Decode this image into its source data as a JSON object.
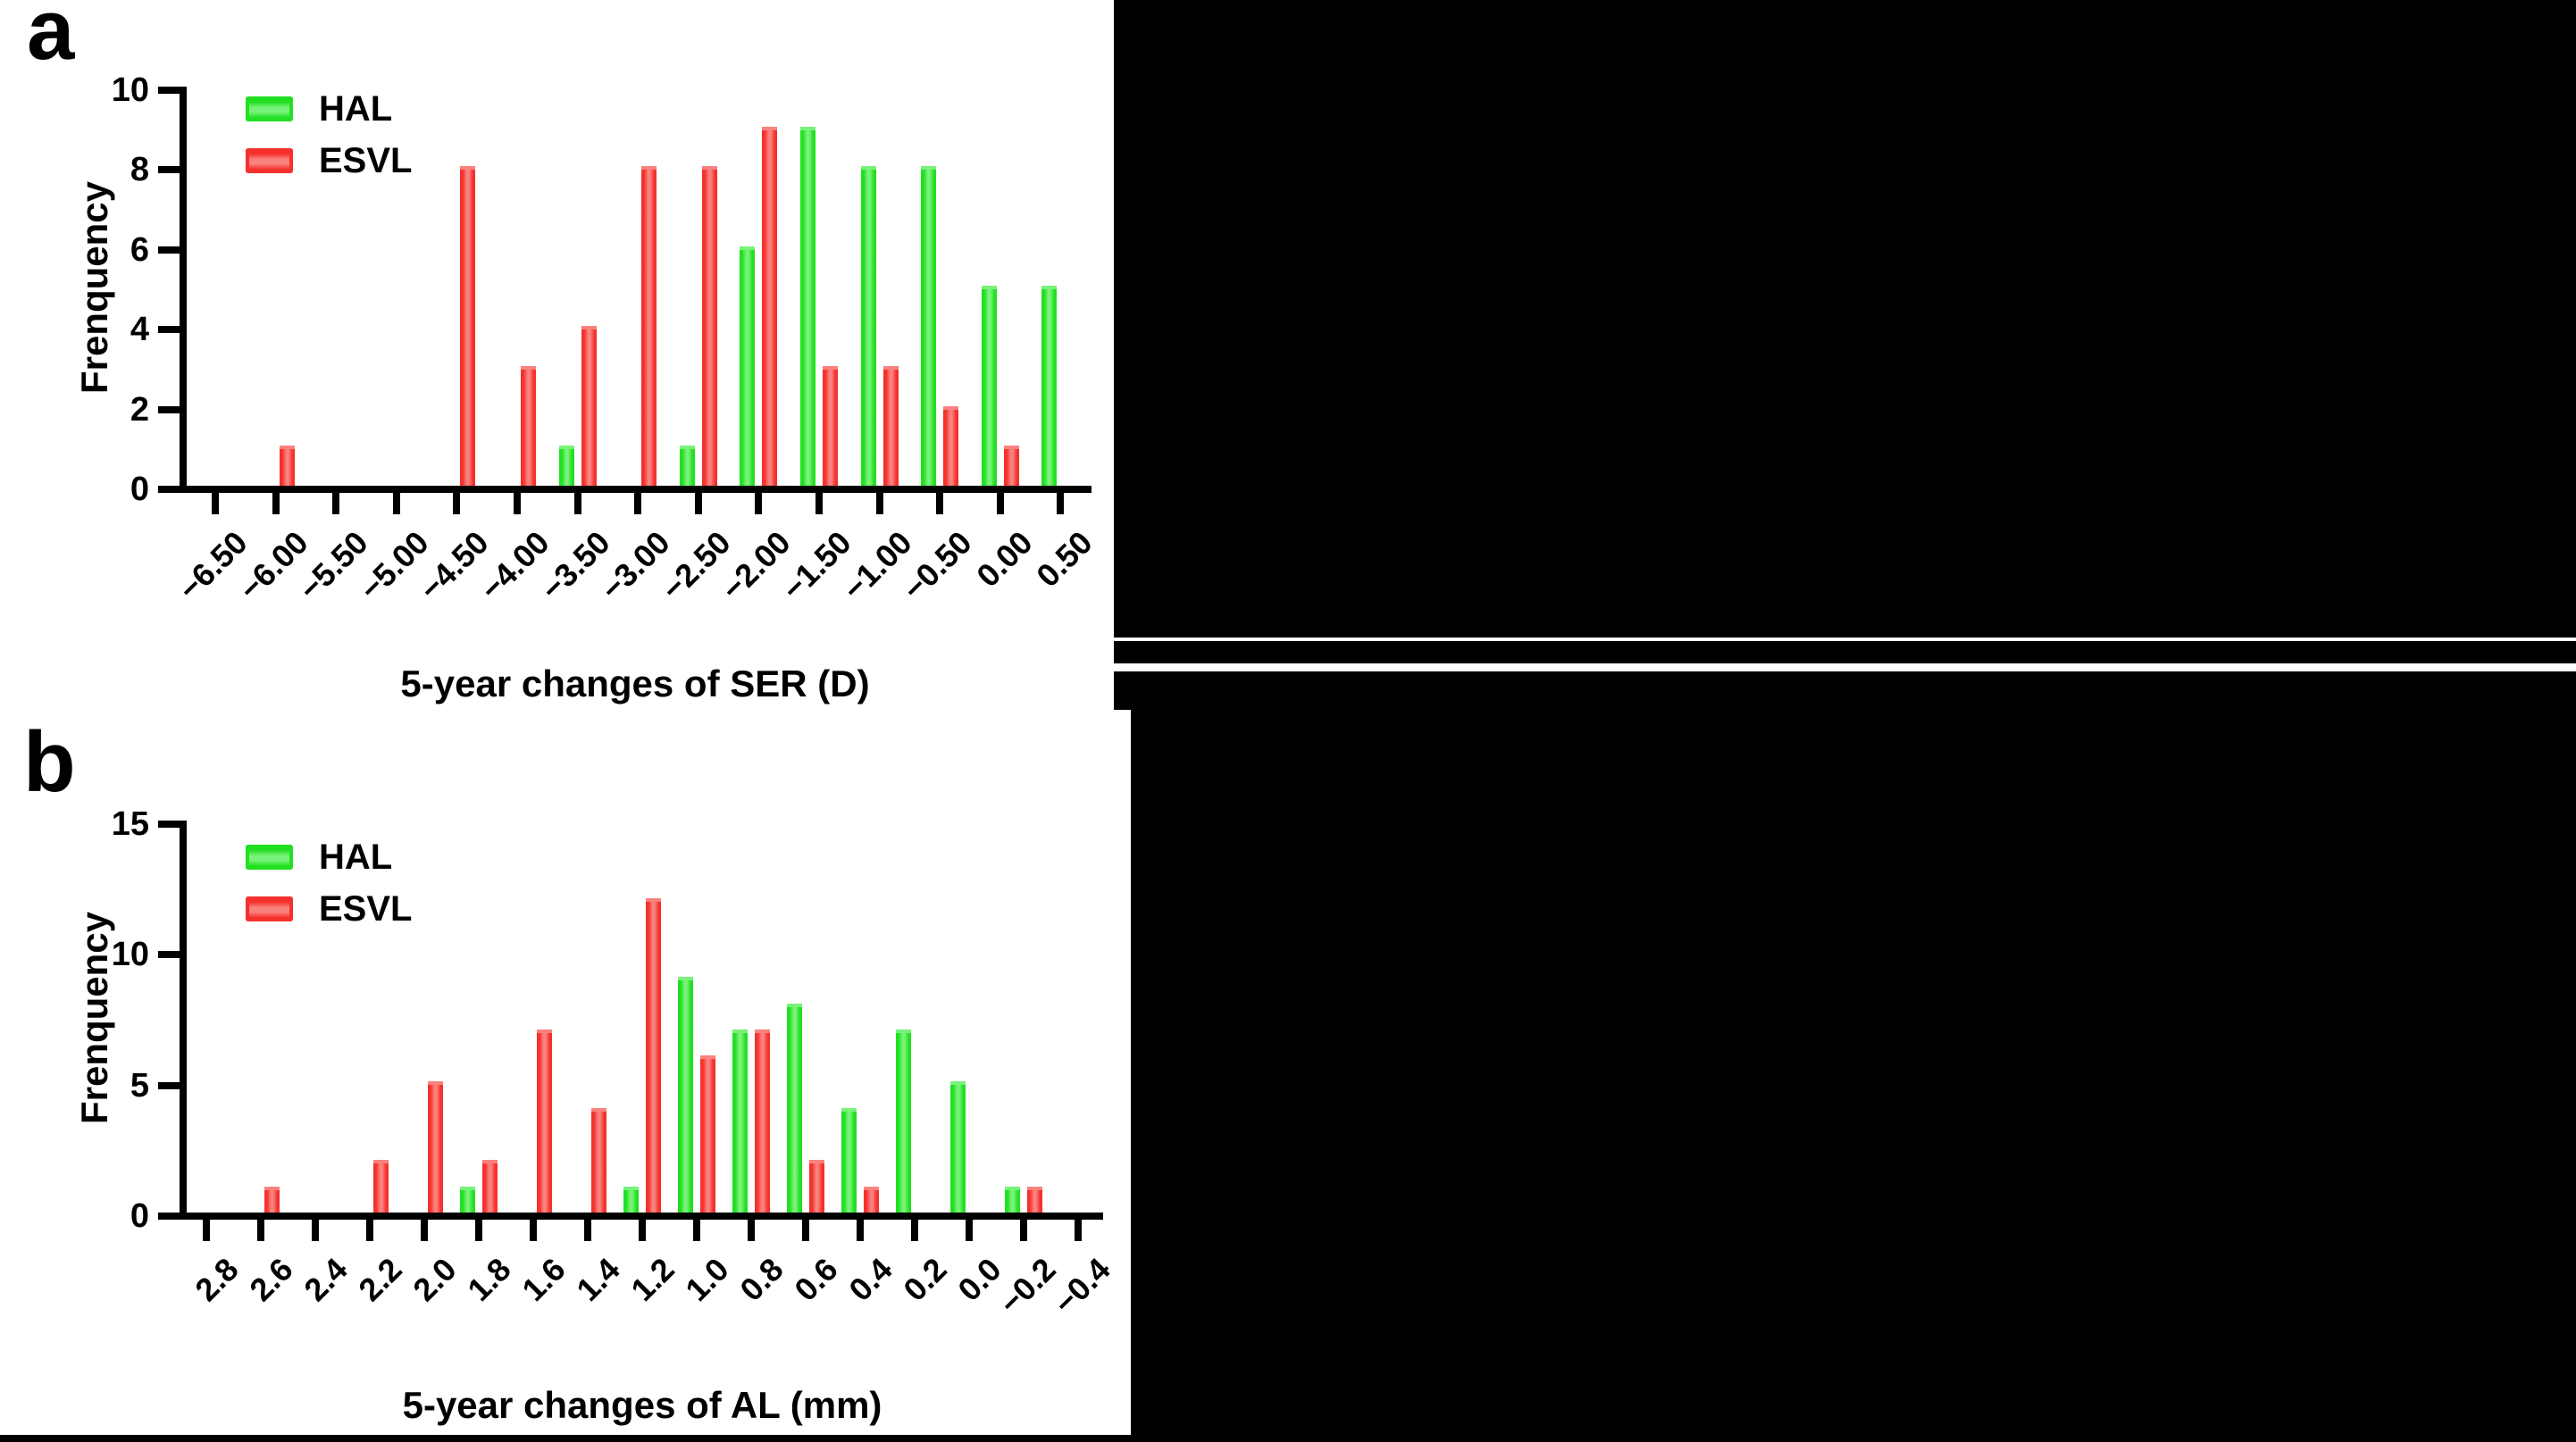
{
  "figure": {
    "background": "#000000",
    "panel_background": "#ffffff"
  },
  "colors": {
    "hal_green": "#22df22",
    "hal_green_light": "#79f279",
    "esvl_red": "#f5312d",
    "esvl_red_light": "#fa827e",
    "axis": "#000000",
    "text": "#000000"
  },
  "chart_data": [
    {
      "type": "bar",
      "panel_label": "a",
      "title": "",
      "ylabel": "Frenquency",
      "xlabel": "5-year changes of SER (D)",
      "ylim": [
        0,
        10
      ],
      "yticks": [
        0,
        2,
        4,
        6,
        8,
        10
      ],
      "grid": false,
      "legend_position": "top-left",
      "categories": [
        "−6.50",
        "−6.00",
        "−5.50",
        "−5.00",
        "−4.50",
        "−4.00",
        "−3.50",
        "−3.00",
        "−2.50",
        "−2.00",
        "−1.50",
        "−1.00",
        "−0.50",
        "0.00",
        "0.50"
      ],
      "series": [
        {
          "name": "HAL",
          "color_key": "hal_green",
          "values": [
            0,
            0,
            0,
            0,
            0,
            0,
            1,
            0,
            1,
            6,
            9,
            8,
            8,
            5,
            5
          ]
        },
        {
          "name": "ESVL",
          "color_key": "esvl_red",
          "values": [
            0,
            1,
            0,
            0,
            8,
            3,
            4,
            8,
            8,
            9,
            3,
            3,
            2,
            1,
            0
          ]
        }
      ]
    },
    {
      "type": "bar",
      "panel_label": "b",
      "title": "",
      "ylabel": "Frenquency",
      "xlabel": "5-year changes of AL (mm)",
      "ylim": [
        0,
        15
      ],
      "yticks": [
        0,
        5,
        10,
        15
      ],
      "grid": false,
      "legend_position": "top-left",
      "categories": [
        "2.8",
        "2.6",
        "2.4",
        "2.2",
        "2.0",
        "1.8",
        "1.6",
        "1.4",
        "1.2",
        "1.0",
        "0.8",
        "0.6",
        "0.4",
        "0.2",
        "0.0",
        "−0.2",
        "−0.4"
      ],
      "series": [
        {
          "name": "HAL",
          "color_key": "hal_green",
          "values": [
            0,
            0,
            0,
            0,
            0,
            1,
            0,
            0,
            1,
            9,
            7,
            8,
            4,
            7,
            5,
            1,
            0
          ]
        },
        {
          "name": "ESVL",
          "color_key": "esvl_red",
          "values": [
            0,
            1,
            0,
            2,
            5,
            2,
            7,
            4,
            12,
            6,
            7,
            2,
            1,
            0,
            0,
            1,
            0
          ]
        }
      ]
    }
  ]
}
